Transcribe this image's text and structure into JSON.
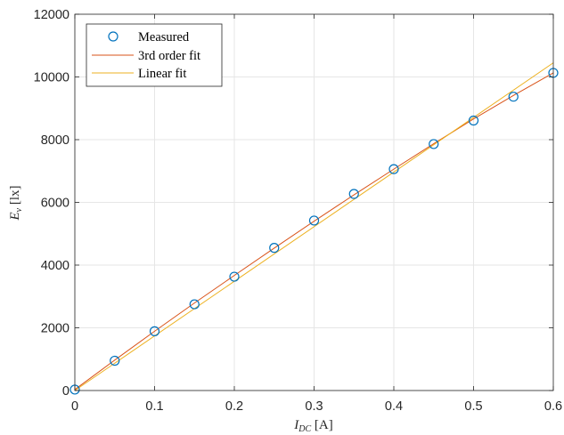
{
  "chart_data": {
    "type": "line",
    "title": "",
    "xlabel": {
      "main": "I",
      "sub": "DC",
      "unit": " [A]"
    },
    "ylabel": {
      "main": "E",
      "sub": "v",
      "unit": " [lx]"
    },
    "xlim": [
      0,
      0.6
    ],
    "ylim": [
      0,
      12000
    ],
    "xticks": [
      0,
      0.1,
      0.2,
      0.3,
      0.4,
      0.5,
      0.6
    ],
    "xtick_labels": [
      "0",
      "0.1",
      "0.2",
      "0.3",
      "0.4",
      "0.5",
      "0.6"
    ],
    "yticks": [
      0,
      2000,
      4000,
      6000,
      8000,
      10000,
      12000
    ],
    "ytick_labels": [
      "0",
      "2000",
      "4000",
      "6000",
      "8000",
      "10000",
      "12000"
    ],
    "grid": true,
    "legend_position": "top-left",
    "series": [
      {
        "name": "Measured",
        "kind": "scatter",
        "marker": "circle-open",
        "color": "#0072BD",
        "x": [
          0,
          0.05,
          0.1,
          0.15,
          0.2,
          0.25,
          0.3,
          0.35,
          0.4,
          0.45,
          0.5,
          0.55,
          0.6
        ],
        "y": [
          30,
          950,
          1890,
          2750,
          3630,
          4550,
          5420,
          6270,
          7060,
          7860,
          8610,
          9370,
          10130
        ]
      },
      {
        "name": "3rd order fit",
        "kind": "line",
        "color": "#D95319",
        "x": [
          0,
          0.05,
          0.1,
          0.15,
          0.2,
          0.25,
          0.3,
          0.35,
          0.4,
          0.45,
          0.5,
          0.55,
          0.6
        ],
        "y": [
          30,
          970,
          1890,
          2790,
          3670,
          4540,
          5400,
          6240,
          7060,
          7870,
          8660,
          9410,
          10130
        ]
      },
      {
        "name": "Linear fit",
        "kind": "line",
        "color": "#EDB120",
        "x": [
          0,
          0.6
        ],
        "y": [
          0,
          10450
        ]
      }
    ]
  }
}
